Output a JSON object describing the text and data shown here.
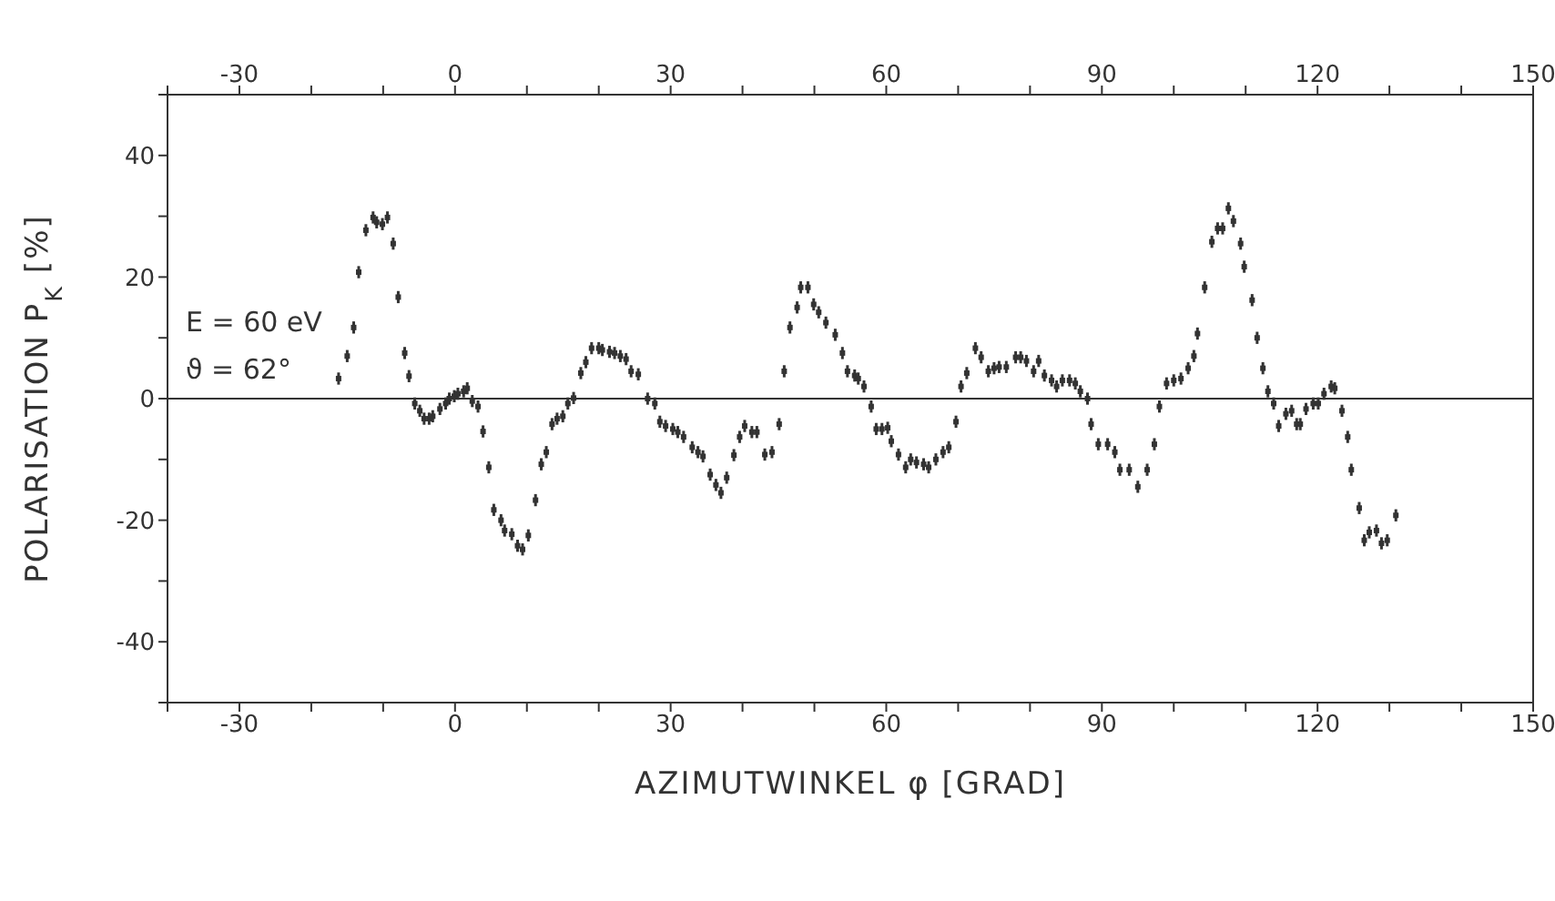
{
  "chart_data": {
    "type": "scatter",
    "xlabel": "AZIMUTWINKEL φ [GRAD]",
    "ylabel": "POLARISATION P$_{K}$ [%]",
    "annotations": [
      "E = 60 eV",
      "ϑ = 62°"
    ],
    "xlim": [
      -40,
      150
    ],
    "xticks": [
      {
        "value": -40,
        "label": null
      },
      -30,
      {
        "value": -20,
        "label": null
      },
      {
        "value": -10,
        "label": null
      },
      0,
      {
        "value": 10,
        "label": null
      },
      {
        "value": 20,
        "label": null
      },
      30,
      {
        "value": 40,
        "label": null
      },
      {
        "value": 50,
        "label": null
      },
      60,
      {
        "value": 70,
        "label": null
      },
      {
        "value": 80,
        "label": null
      },
      90,
      {
        "value": 100,
        "label": null
      },
      {
        "value": 110,
        "label": null
      },
      120,
      {
        "value": 130,
        "label": null
      },
      {
        "value": 140,
        "label": null
      },
      150
    ],
    "x2lim": [
      -40,
      150
    ],
    "x2ticks": [
      {
        "value": -40,
        "label": null
      },
      -30,
      {
        "value": -20,
        "label": null
      },
      {
        "value": -10,
        "label": null
      },
      0,
      {
        "value": 10,
        "label": null
      },
      {
        "value": 20,
        "label": null
      },
      30,
      {
        "value": 40,
        "label": null
      },
      {
        "value": 50,
        "label": null
      },
      60,
      {
        "value": 70,
        "label": null
      },
      {
        "value": 80,
        "label": null
      },
      90,
      {
        "value": 100,
        "label": null
      },
      {
        "value": 110,
        "label": null
      },
      120,
      {
        "value": 130,
        "label": null
      },
      {
        "value": 140,
        "label": null
      },
      150
    ],
    "ylim": [
      -50,
      50
    ],
    "yticks": [
      {
        "value": -50,
        "label": null
      },
      -40,
      {
        "value": -30,
        "label": null
      },
      -20,
      {
        "value": -10,
        "label": null
      },
      0,
      {
        "value": 10,
        "label": null
      },
      20,
      {
        "value": 30,
        "label": null
      },
      40,
      {
        "value": 50,
        "label": null
      }
    ],
    "ref_lines": [
      {
        "axis": "y",
        "value": 0,
        "color": "#333333"
      }
    ],
    "grid": false,
    "legend": false,
    "marker": "square",
    "series": [
      {
        "color": "#333333",
        "x": [
          -16.2,
          -15,
          -14.1,
          -13.4,
          -12.4,
          -11.4,
          -10.9,
          -10.1,
          -9.4,
          -8.6,
          -7.9,
          -7,
          -6.4,
          -5.6,
          -4.9,
          -4.3,
          -3.6,
          -3.1,
          -2.1,
          -1.3,
          -0.8,
          -0.1,
          0.4,
          1.2,
          1.7,
          2.4,
          3.2,
          3.9,
          4.7,
          5.4,
          6.4,
          6.9,
          7.9,
          8.7,
          9.4,
          10.2,
          11.2,
          12,
          12.7,
          13.5,
          14.2,
          15,
          15.7,
          16.5,
          17.5,
          18.2,
          19,
          20,
          20.5,
          21.5,
          22.2,
          23,
          23.8,
          24.5,
          25.5,
          26.8,
          27.8,
          28.5,
          29.3,
          30.3,
          31,
          31.8,
          33,
          33.8,
          34.5,
          35.5,
          36.3,
          37,
          37.8,
          38.8,
          39.6,
          40.3,
          41.3,
          42,
          43.1,
          44.1,
          45.1,
          45.8,
          46.6,
          47.6,
          48.1,
          49.1,
          49.9,
          50.6,
          51.6,
          52.9,
          53.9,
          54.6,
          55.6,
          56.1,
          56.9,
          57.9,
          58.6,
          59.4,
          60.2,
          60.7,
          61.7,
          62.7,
          63.4,
          64.2,
          65.2,
          65.9,
          66.9,
          67.9,
          68.7,
          69.7,
          70.4,
          71.2,
          72.4,
          73.2,
          74.2,
          75,
          75.7,
          76.7,
          78,
          78.7,
          79.5,
          80.5,
          81.2,
          82,
          83,
          83.7,
          84.5,
          85.5,
          86.3,
          87,
          88,
          88.5,
          89.5,
          90.8,
          91.8,
          92.5,
          93.8,
          95,
          96.3,
          97.3,
          98,
          99,
          100,
          101,
          102,
          102.8,
          103.3,
          104.3,
          105.3,
          106.1,
          106.8,
          107.6,
          108.3,
          109.3,
          109.8,
          110.9,
          111.6,
          112.4,
          113.1,
          113.9,
          114.6,
          115.6,
          116.4,
          117.1,
          117.6,
          118.4,
          119.4,
          120.1,
          120.9,
          121.9,
          122.4,
          123.4,
          124.2,
          124.7,
          125.8,
          126.5,
          127.2,
          128.2,
          128.9,
          129.7,
          130.9
        ],
        "values": [
          3.3,
          7,
          11.7,
          20.8,
          27.7,
          29.8,
          29,
          28.7,
          29.8,
          25.5,
          16.7,
          7.5,
          3.7,
          -0.8,
          -2,
          -3.3,
          -3.3,
          -2.9,
          -1.7,
          -0.8,
          0,
          0.4,
          0.8,
          1.2,
          1.7,
          -0.4,
          -1.3,
          -5.4,
          -11.3,
          -18.3,
          -20,
          -21.7,
          -22.3,
          -24.2,
          -24.8,
          -22.5,
          -16.7,
          -10.8,
          -8.8,
          -4.2,
          -3.3,
          -2.9,
          -0.8,
          0.1,
          4.2,
          6,
          8.3,
          8.3,
          8,
          7.7,
          7.5,
          7,
          6.5,
          4.5,
          4,
          0,
          -0.8,
          -3.8,
          -4.5,
          -5,
          -5.5,
          -6.3,
          -8,
          -8.8,
          -9.5,
          -12.5,
          -14.2,
          -15.5,
          -13,
          -9.3,
          -6.3,
          -4.5,
          -5.5,
          -5.5,
          -9.2,
          -8.8,
          -4.2,
          4.5,
          11.7,
          15,
          18.3,
          18.3,
          15.5,
          14.2,
          12.5,
          10.5,
          7.5,
          4.5,
          3.8,
          3.3,
          2,
          -1.3,
          -5,
          -5,
          -4.8,
          -7,
          -9.2,
          -11.3,
          -10,
          -10.5,
          -10.8,
          -11.3,
          -10,
          -8.8,
          -8,
          -3.8,
          2,
          4.2,
          8.3,
          6.8,
          4.5,
          5,
          5.2,
          5.2,
          6.8,
          6.8,
          6.2,
          4.5,
          6.2,
          3.8,
          3,
          2,
          3,
          3,
          2.5,
          1.2,
          0,
          -4.2,
          -7.5,
          -7.5,
          -8.8,
          -11.7,
          -11.7,
          -14.5,
          -11.7,
          -7.5,
          -1.3,
          2.5,
          3,
          3.3,
          5,
          7,
          10.7,
          18.3,
          25.8,
          28,
          28,
          31.3,
          29.2,
          25.5,
          21.7,
          16.2,
          10,
          5,
          1.2,
          -0.8,
          -4.5,
          -2.5,
          -2,
          -4.2,
          -4.2,
          -1.7,
          -0.8,
          -0.8,
          0.8,
          2,
          1.7,
          -2,
          -6.3,
          -11.7,
          -18,
          -23.3,
          -22,
          -21.7,
          -23.8,
          -23.3,
          -19.2
        ],
        "errors": [
          1,
          1,
          1,
          1,
          1,
          1,
          1,
          1,
          1,
          1,
          1,
          1,
          1,
          1,
          1,
          1,
          1,
          1,
          1,
          1,
          1,
          1,
          1,
          1,
          1,
          1,
          1,
          1,
          1,
          1,
          1,
          1,
          1,
          1,
          1,
          1,
          1,
          1,
          1,
          1,
          1,
          1,
          1,
          1,
          1,
          1,
          1,
          1,
          1,
          1,
          1,
          1,
          1,
          1,
          1,
          1,
          1,
          1,
          1,
          1,
          1,
          1,
          1,
          1,
          1,
          1,
          1,
          1,
          1,
          1,
          1,
          1,
          1,
          1,
          1,
          1,
          1,
          1,
          1,
          1,
          1,
          1,
          1,
          1,
          1,
          1,
          1,
          1,
          1,
          1,
          1,
          1,
          1,
          1,
          1,
          1,
          1,
          1,
          1,
          1,
          1,
          1,
          1,
          1,
          1,
          1,
          1,
          1,
          1,
          1,
          1,
          1,
          1,
          1,
          1,
          1,
          1,
          1,
          1,
          1,
          1,
          1,
          1,
          1,
          1,
          1,
          1,
          1,
          1,
          1,
          1,
          1,
          1,
          1,
          1,
          1,
          1,
          1,
          1,
          1,
          1,
          1,
          1,
          1,
          1,
          1,
          1,
          1,
          1,
          1,
          1,
          1,
          1,
          1,
          1,
          1,
          1,
          1,
          1,
          1,
          1,
          1,
          1,
          1,
          1,
          1,
          1,
          1,
          1,
          1,
          1,
          1,
          1,
          1,
          1,
          1,
          1
        ]
      }
    ]
  }
}
